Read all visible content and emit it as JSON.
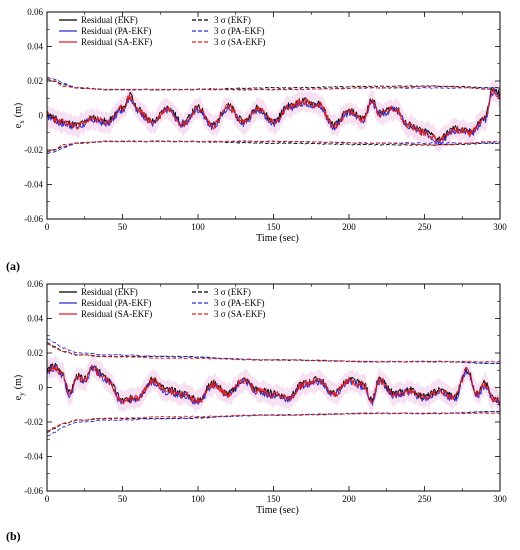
{
  "colors": {
    "ekf": "#000000",
    "pa_ekf": "#2b2bd6",
    "sa_ekf": "#e02020",
    "band": "#f3c6ea"
  },
  "chart_data": [
    {
      "type": "line",
      "panel_label": "(a)",
      "xlabel": "Time (sec)",
      "ylabel": "e_x (m)",
      "ylabel_main": "e",
      "ylabel_sub": "x",
      "ylabel_unit": "(m)",
      "xlim": [
        0,
        300
      ],
      "ylim": [
        -0.06,
        0.06
      ],
      "xticks": [
        0,
        50,
        100,
        150,
        200,
        250,
        300
      ],
      "yticks": [
        -0.06,
        -0.04,
        -0.02,
        0,
        0.02,
        0.04,
        0.06
      ],
      "xtick_labels": [
        "0",
        "50",
        "100",
        "150",
        "200",
        "250",
        "300"
      ],
      "ytick_labels": [
        "-0.06",
        "-0.04",
        "-0.02",
        "0",
        "0.02",
        "0.04",
        "0.06"
      ],
      "grid": false,
      "legend_position": "top",
      "legend": [
        "Residual (EKF)",
        "Residual (PA-EKF)",
        "Residual (SA-EKF)",
        "3 σ (EKF)",
        "3 σ (PA-EKF)",
        "3 σ (SA-EKF)"
      ],
      "residual_x": [
        0,
        10,
        20,
        30,
        40,
        50,
        55,
        60,
        70,
        80,
        90,
        100,
        110,
        120,
        130,
        140,
        150,
        160,
        170,
        180,
        190,
        200,
        210,
        215,
        220,
        230,
        240,
        250,
        260,
        270,
        280,
        290,
        295,
        300
      ],
      "residual_y": [
        0.0,
        -0.004,
        -0.006,
        -0.002,
        -0.004,
        0.004,
        0.011,
        0.003,
        -0.004,
        0.004,
        -0.005,
        0.004,
        -0.006,
        0.005,
        -0.004,
        0.004,
        -0.004,
        0.005,
        0.008,
        0.006,
        -0.006,
        0.002,
        -0.002,
        0.009,
        0.001,
        0.004,
        -0.006,
        -0.01,
        -0.014,
        -0.008,
        -0.01,
        -0.002,
        0.014,
        0.012
      ],
      "sigma_x": [
        0,
        5,
        10,
        20,
        40,
        80,
        150,
        220,
        260,
        300
      ],
      "sigma_ekf": [
        0.021,
        0.02,
        0.018,
        0.016,
        0.015,
        0.015,
        0.016,
        0.017,
        0.017,
        0.016
      ],
      "sigma_pa_ekf": [
        0.022,
        0.021,
        0.019,
        0.016,
        0.015,
        0.015,
        0.015,
        0.016,
        0.016,
        0.016
      ],
      "sigma_sa_ekf": [
        0.021,
        0.02,
        0.017,
        0.016,
        0.015,
        0.015,
        0.015,
        0.016,
        0.017,
        0.015
      ]
    },
    {
      "type": "line",
      "panel_label": "(b)",
      "xlabel": "Time (sec)",
      "ylabel": "e_y (m)",
      "ylabel_main": "e",
      "ylabel_sub": "y",
      "ylabel_unit": "(m)",
      "xlim": [
        0,
        300
      ],
      "ylim": [
        -0.06,
        0.06
      ],
      "xticks": [
        0,
        50,
        100,
        150,
        200,
        250,
        300
      ],
      "yticks": [
        -0.06,
        -0.04,
        -0.02,
        0,
        0.02,
        0.04,
        0.06
      ],
      "xtick_labels": [
        "0",
        "50",
        "100",
        "150",
        "200",
        "250",
        "300"
      ],
      "ytick_labels": [
        "-0.06",
        "-0.04",
        "-0.02",
        "0",
        "0.02",
        "0.04",
        "0.06"
      ],
      "grid": false,
      "legend_position": "top",
      "legend": [
        "Residual (EKF)",
        "Residual (PA-EKF)",
        "Residual (SA-EKF)",
        "3 σ (EKF)",
        "3 σ (PA-EKF)",
        "3 σ (SA-EKF)"
      ],
      "residual_x": [
        0,
        5,
        10,
        15,
        20,
        25,
        30,
        35,
        40,
        50,
        60,
        70,
        80,
        90,
        100,
        110,
        120,
        130,
        140,
        150,
        160,
        170,
        180,
        190,
        200,
        210,
        215,
        220,
        230,
        240,
        250,
        260,
        270,
        278,
        285,
        290,
        295,
        300
      ],
      "residual_y": [
        0.01,
        0.012,
        0.008,
        -0.004,
        0.006,
        0.004,
        0.012,
        0.008,
        0.004,
        -0.008,
        -0.006,
        0.004,
        -0.002,
        -0.004,
        -0.008,
        0.002,
        -0.004,
        0.004,
        -0.002,
        -0.004,
        -0.006,
        0.002,
        0.004,
        -0.004,
        0.004,
        0.001,
        -0.008,
        0.004,
        -0.004,
        -0.002,
        -0.006,
        -0.002,
        -0.006,
        0.01,
        -0.004,
        0.002,
        -0.006,
        -0.008
      ],
      "sigma_x": [
        0,
        5,
        10,
        20,
        40,
        80,
        150,
        220,
        260,
        300
      ],
      "sigma_ekf": [
        0.026,
        0.024,
        0.021,
        0.019,
        0.018,
        0.018,
        0.016,
        0.015,
        0.015,
        0.014
      ],
      "sigma_pa_ekf": [
        0.028,
        0.026,
        0.023,
        0.02,
        0.019,
        0.018,
        0.016,
        0.015,
        0.015,
        0.014
      ],
      "sigma_sa_ekf": [
        0.025,
        0.023,
        0.021,
        0.019,
        0.018,
        0.017,
        0.016,
        0.015,
        0.015,
        0.015
      ]
    }
  ]
}
